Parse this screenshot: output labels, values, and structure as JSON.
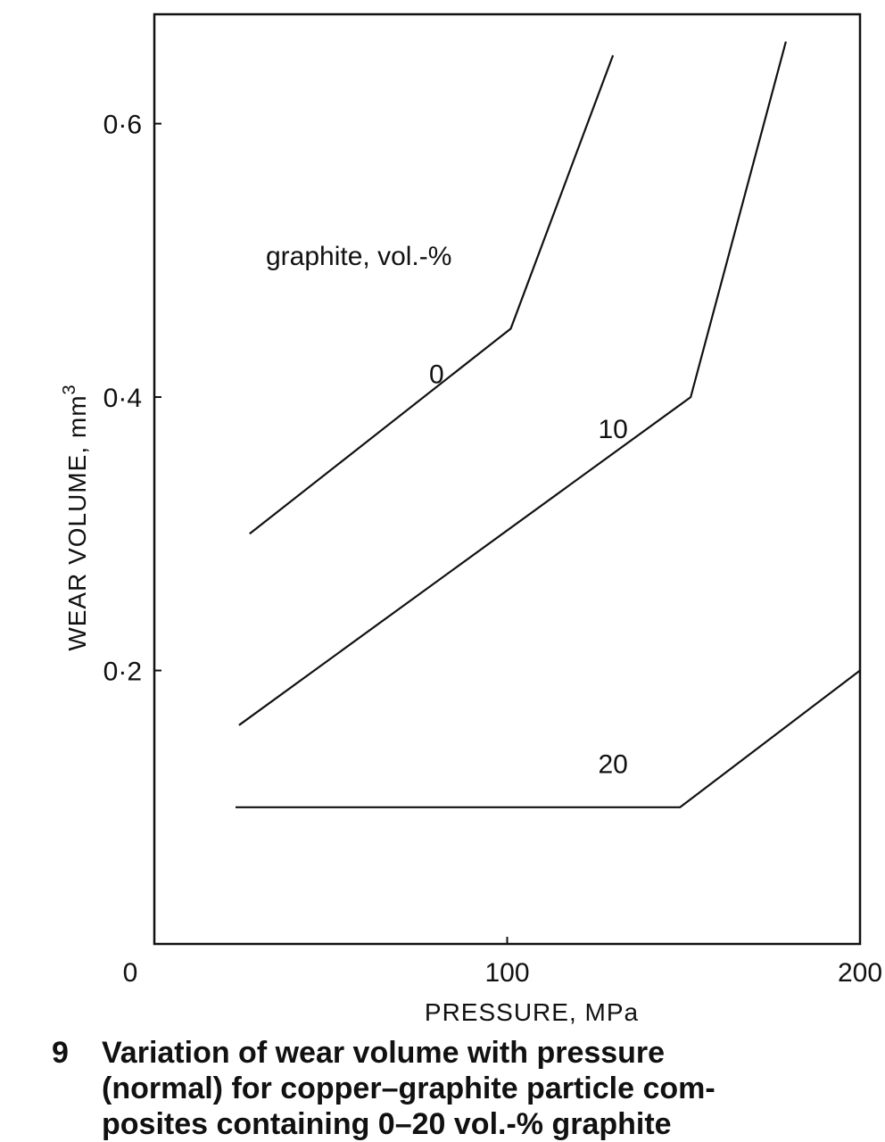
{
  "chart_data": {
    "type": "line",
    "xlabel": "PRESSURE, MPa",
    "ylabel": "WEAR VOLUME, mm",
    "ylabel_superscript": "3",
    "xlim": [
      0,
      200
    ],
    "ylim": [
      0,
      0.68
    ],
    "x_ticks": [
      {
        "value": 0,
        "label": "0"
      },
      {
        "value": 100,
        "label": "100"
      },
      {
        "value": 200,
        "label": "200"
      }
    ],
    "y_ticks": [
      {
        "value": 0.2,
        "label": "0·2"
      },
      {
        "value": 0.4,
        "label": "0·4"
      },
      {
        "value": 0.6,
        "label": "0·6"
      }
    ],
    "legend_title": "graphite, vol.-%",
    "grid": false,
    "series": [
      {
        "name": "0",
        "label_at": [
          80,
          0.41
        ],
        "points": [
          [
            27,
            0.3
          ],
          [
            101,
            0.45
          ],
          [
            130,
            0.65
          ]
        ]
      },
      {
        "name": "10",
        "label_at": [
          130,
          0.37
        ],
        "points": [
          [
            24,
            0.16
          ],
          [
            152,
            0.4
          ],
          [
            179,
            0.66
          ]
        ]
      },
      {
        "name": "20",
        "label_at": [
          130,
          0.125
        ],
        "points": [
          [
            23,
            0.1
          ],
          [
            149,
            0.1
          ],
          [
            200,
            0.2
          ]
        ]
      }
    ]
  },
  "caption": {
    "number": "9",
    "lines": [
      "Variation of wear volume with pressure",
      "(normal) for copper–graphite particle com-",
      "posites containing 0–20 vol.-% graphite"
    ]
  }
}
